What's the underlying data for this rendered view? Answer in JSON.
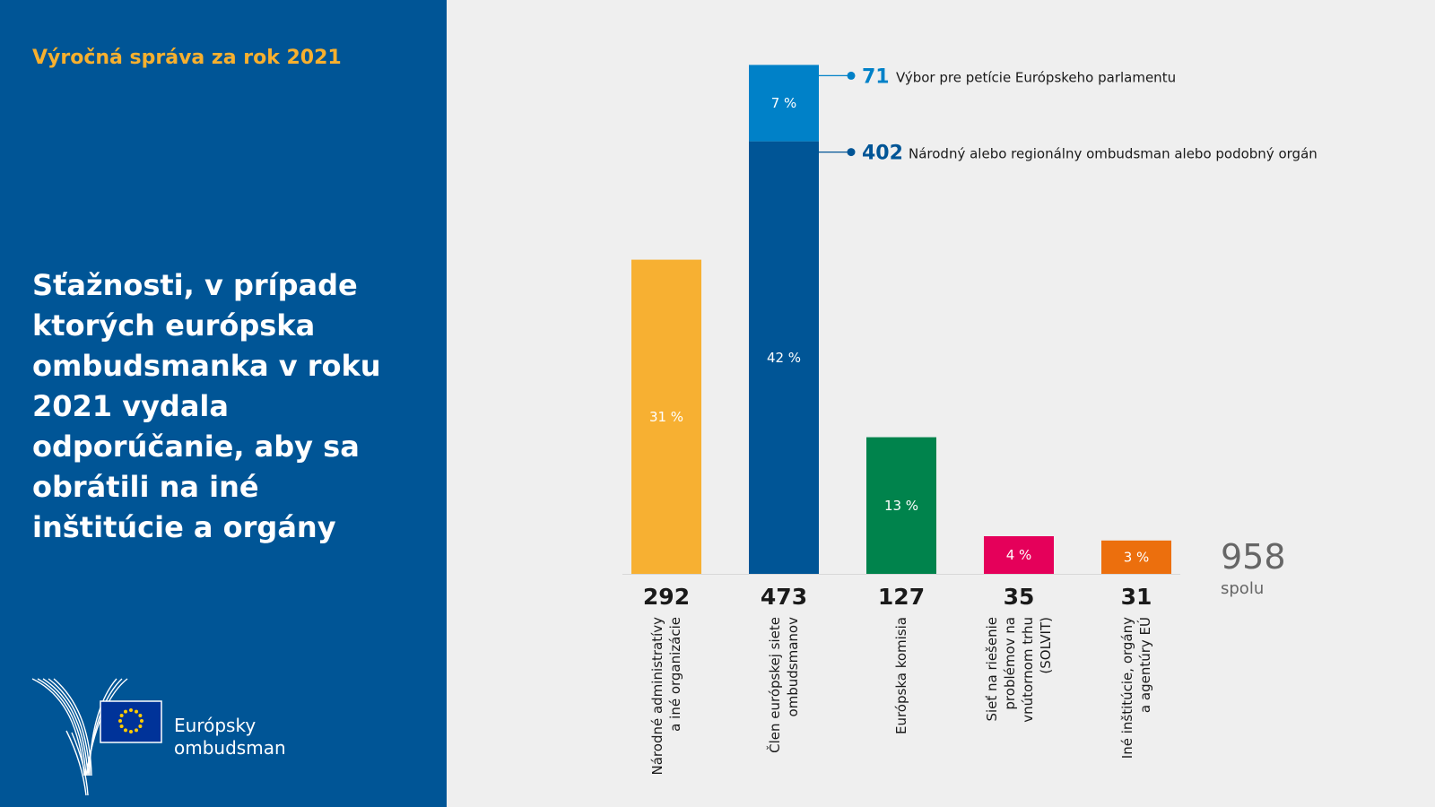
{
  "report_title": "Výročná správa za rok 2021",
  "main_title": "Sťažnosti, v prípade ktorých európska ombudsmanka v roku 2021 vydala odporúčanie, aby sa obrátili na iné inštitúcie a orgány",
  "logo": {
    "line1": "Európsky",
    "line2": "ombudsman"
  },
  "chart_data": {
    "type": "bar",
    "stacked": true,
    "title": "Sťažnosti, v prípade ktorých európska ombudsmanka v roku 2021 vydala odporúčanie, aby sa obrátili na iné inštitúcie a orgány",
    "categories": [
      [
        "Národné administratívy",
        "a iné organizácie"
      ],
      [
        "Člen európskej siete",
        "ombudsmanov"
      ],
      [
        "Európska komisia"
      ],
      [
        "Sieť na riešenie",
        "problémov na",
        "vnútornom trhu",
        "(SOLVIT)"
      ],
      [
        "Iné inštitúcie, orgány",
        "a agentúry EÚ"
      ]
    ],
    "totals": [
      292,
      473,
      127,
      35,
      31
    ],
    "bars": [
      {
        "segments": [
          {
            "value": 292,
            "pct": "31 %",
            "color": "#f7b032"
          }
        ]
      },
      {
        "segments": [
          {
            "value": 402,
            "pct": "42 %",
            "color": "#005596",
            "callout": {
              "value": "402",
              "label": "Národný alebo regionálny ombudsman alebo podobný orgán"
            }
          },
          {
            "value": 71,
            "pct": "7 %",
            "color": "#0081c8",
            "callout": {
              "value": "71",
              "label": "Výbor pre petície Európskeho parlamentu"
            }
          }
        ]
      },
      {
        "segments": [
          {
            "value": 127,
            "pct": "13 %",
            "color": "#00834c"
          }
        ]
      },
      {
        "segments": [
          {
            "value": 35,
            "pct": "4 %",
            "color": "#e5005a"
          }
        ]
      },
      {
        "segments": [
          {
            "value": 31,
            "pct": "3 %",
            "color": "#ec6f0d"
          }
        ]
      }
    ],
    "grand_total": {
      "value": "958",
      "label": "spolu"
    },
    "xlabel": "",
    "ylabel": ""
  }
}
